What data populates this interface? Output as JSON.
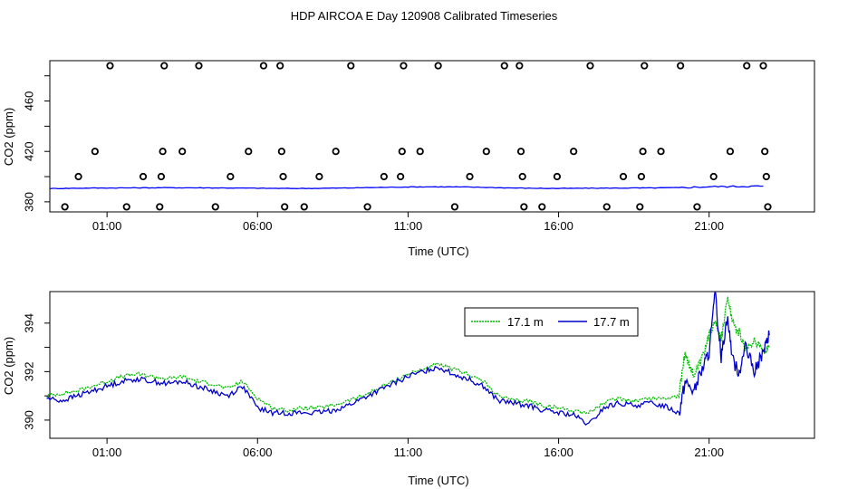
{
  "title": "HDP AIRCOA E  Day 120908  Calibrated Timeseries",
  "chart_data": [
    {
      "type": "scatter",
      "title": "",
      "xlabel": "Time (UTC)",
      "ylabel": "CO2 (ppm)",
      "xlim": [
        -0.9,
        24.5
      ],
      "ylim": [
        372,
        492
      ],
      "x_ticks": [
        1,
        6,
        11,
        16,
        21
      ],
      "x_tick_labels": [
        "01:00",
        "06:00",
        "11:00",
        "16:00",
        "21:00"
      ],
      "y_ticks": [
        380,
        420,
        460
      ],
      "grid": false,
      "series": [
        {
          "kind": "points",
          "color": "#000000",
          "points": [
            [
              -0.4,
              376
            ],
            [
              0.05,
              400
            ],
            [
              0.6,
              420
            ],
            [
              1.1,
              488
            ],
            [
              1.65,
              376
            ],
            [
              2.2,
              400
            ],
            [
              2.75,
              376
            ],
            [
              2.8,
              400
            ],
            [
              2.85,
              420
            ],
            [
              2.9,
              488
            ],
            [
              3.5,
              420
            ],
            [
              4.05,
              488
            ],
            [
              4.6,
              376
            ],
            [
              5.1,
              400
            ],
            [
              5.7,
              420
            ],
            [
              6.2,
              488
            ],
            [
              6.75,
              488
            ],
            [
              6.8,
              420
            ],
            [
              6.85,
              400
            ],
            [
              6.9,
              376
            ],
            [
              7.55,
              376
            ],
            [
              8.05,
              400
            ],
            [
              8.6,
              420
            ],
            [
              9.1,
              488
            ],
            [
              9.65,
              376
            ],
            [
              10.2,
              400
            ],
            [
              10.75,
              400
            ],
            [
              10.8,
              420
            ],
            [
              10.85,
              488
            ],
            [
              11.4,
              420
            ],
            [
              12.0,
              488
            ],
            [
              12.55,
              376
            ],
            [
              13.05,
              400
            ],
            [
              13.6,
              420
            ],
            [
              14.2,
              488
            ],
            [
              14.7,
              488
            ],
            [
              14.75,
              420
            ],
            [
              14.8,
              400
            ],
            [
              14.85,
              376
            ],
            [
              15.45,
              376
            ],
            [
              15.95,
              400
            ],
            [
              16.5,
              420
            ],
            [
              17.05,
              488
            ],
            [
              17.6,
              376
            ],
            [
              18.15,
              400
            ],
            [
              18.7,
              376
            ],
            [
              18.75,
              400
            ],
            [
              18.8,
              420
            ],
            [
              18.85,
              488
            ],
            [
              19.4,
              420
            ],
            [
              20.05,
              488
            ],
            [
              20.6,
              376
            ],
            [
              21.15,
              400
            ],
            [
              21.7,
              420
            ],
            [
              22.25,
              488
            ],
            [
              22.8,
              488
            ],
            [
              22.85,
              420
            ],
            [
              22.9,
              400
            ],
            [
              22.95,
              376
            ]
          ]
        },
        {
          "kind": "line",
          "color": "#0000ff",
          "x": [
            -0.9,
            0,
            1,
            2,
            3,
            4,
            5,
            6,
            7,
            8,
            9,
            10,
            11,
            12,
            13,
            14,
            15,
            16,
            17,
            18,
            19,
            20,
            21,
            22,
            22.8
          ],
          "y": [
            390.5,
            390.8,
            391.0,
            391.1,
            391.2,
            391.1,
            391.0,
            390.8,
            390.6,
            390.7,
            391.0,
            391.4,
            391.8,
            391.9,
            391.7,
            391.2,
            390.8,
            390.6,
            390.8,
            390.9,
            391.0,
            391.2,
            392.0,
            392.2,
            392.5
          ]
        }
      ]
    },
    {
      "type": "line",
      "title": "",
      "xlabel": "Time (UTC)",
      "ylabel": "CO2 (ppm)",
      "xlim": [
        -0.9,
        24.5
      ],
      "ylim": [
        389.25,
        395.3
      ],
      "x_ticks": [
        1,
        6,
        11,
        16,
        21
      ],
      "x_tick_labels": [
        "01:00",
        "06:00",
        "11:00",
        "16:00",
        "21:00"
      ],
      "y_ticks": [
        390,
        392,
        394
      ],
      "y_tick_labels": [
        "390",
        "392",
        "394"
      ],
      "grid": false,
      "legend_position": "top-right",
      "series": [
        {
          "name": "17.1 m",
          "color": "#00bb00",
          "dashed": true,
          "x": [
            -1,
            -0.5,
            0,
            0.5,
            1,
            1.5,
            2,
            2.5,
            3,
            3.5,
            4,
            4.5,
            5,
            5.5,
            6,
            6.5,
            7,
            7.5,
            8,
            8.5,
            9,
            9.5,
            10,
            10.5,
            11,
            11.5,
            12,
            12.5,
            13,
            13.5,
            14,
            14.5,
            15,
            15.5,
            16,
            16.5,
            17,
            17.5,
            18,
            18.5,
            19,
            19.5,
            20,
            20.2,
            20.5,
            20.8,
            21,
            21.2,
            21.4,
            21.6,
            21.8,
            22,
            22.2,
            22.5,
            22.8,
            23
          ],
          "y": [
            391.0,
            391.1,
            391.2,
            391.4,
            391.6,
            391.8,
            391.9,
            391.8,
            391.7,
            391.8,
            391.6,
            391.5,
            391.3,
            391.6,
            390.9,
            390.5,
            390.4,
            390.5,
            390.5,
            390.6,
            390.8,
            391.0,
            391.3,
            391.6,
            391.9,
            392.1,
            392.3,
            392.1,
            391.9,
            391.6,
            391.0,
            390.8,
            390.8,
            390.6,
            390.5,
            390.4,
            390.3,
            390.7,
            390.9,
            390.8,
            390.9,
            390.9,
            391.0,
            392.8,
            391.8,
            392.6,
            393.5,
            394.2,
            393.3,
            395.0,
            394.0,
            393.6,
            392.9,
            393.3,
            392.9,
            393.0
          ]
        },
        {
          "name": "17.7 m",
          "color": "#0000cc",
          "dashed": false,
          "x": [
            -1,
            -0.5,
            0,
            0.5,
            1,
            1.5,
            2,
            2.5,
            3,
            3.5,
            4,
            4.5,
            5,
            5.5,
            6,
            6.5,
            7,
            7.5,
            8,
            8.5,
            9,
            9.5,
            10,
            10.5,
            11,
            11.5,
            12,
            12.5,
            13,
            13.5,
            14,
            14.5,
            15,
            15.5,
            16,
            16.5,
            17,
            17.5,
            18,
            18.5,
            19,
            19.5,
            20,
            20.2,
            20.5,
            20.8,
            21,
            21.2,
            21.4,
            21.6,
            21.8,
            22,
            22.2,
            22.5,
            22.8,
            23
          ],
          "y": [
            390.9,
            390.8,
            391.0,
            391.2,
            391.4,
            391.6,
            391.7,
            391.6,
            391.5,
            391.6,
            391.4,
            391.2,
            391.0,
            391.4,
            390.5,
            390.3,
            390.3,
            390.3,
            390.3,
            390.4,
            390.6,
            390.9,
            391.2,
            391.5,
            391.8,
            392.0,
            392.2,
            391.9,
            391.7,
            391.4,
            390.8,
            390.7,
            390.6,
            390.4,
            390.3,
            390.2,
            389.8,
            390.5,
            390.7,
            390.6,
            390.7,
            390.6,
            390.3,
            391.6,
            391.2,
            392.2,
            392.8,
            395.2,
            392.6,
            394.3,
            392.4,
            392.0,
            393.0,
            392.0,
            392.8,
            393.5
          ]
        }
      ]
    }
  ]
}
